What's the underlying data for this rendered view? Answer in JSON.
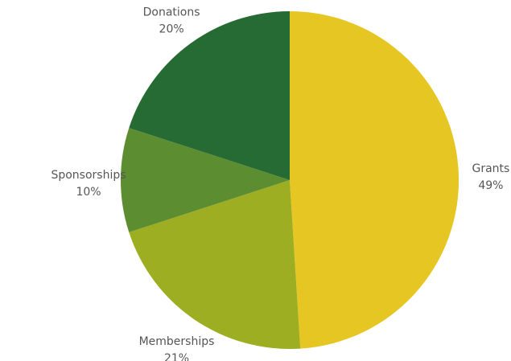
{
  "chart_data": {
    "type": "pie",
    "title": "",
    "slices": [
      {
        "label": "Grants",
        "value": 49,
        "value_label": "49%",
        "color": "#E6C622"
      },
      {
        "label": "Memberships",
        "value": 21,
        "value_label": "21%",
        "color": "#9DAE22"
      },
      {
        "label": "Sponsorships",
        "value": 10,
        "value_label": "10%",
        "color": "#5C8E31"
      },
      {
        "label": "Donations",
        "value": 20,
        "value_label": "20%",
        "color": "#266A34"
      }
    ],
    "start": "top (12 o'clock)",
    "direction": "clockwise",
    "legend": "none"
  }
}
